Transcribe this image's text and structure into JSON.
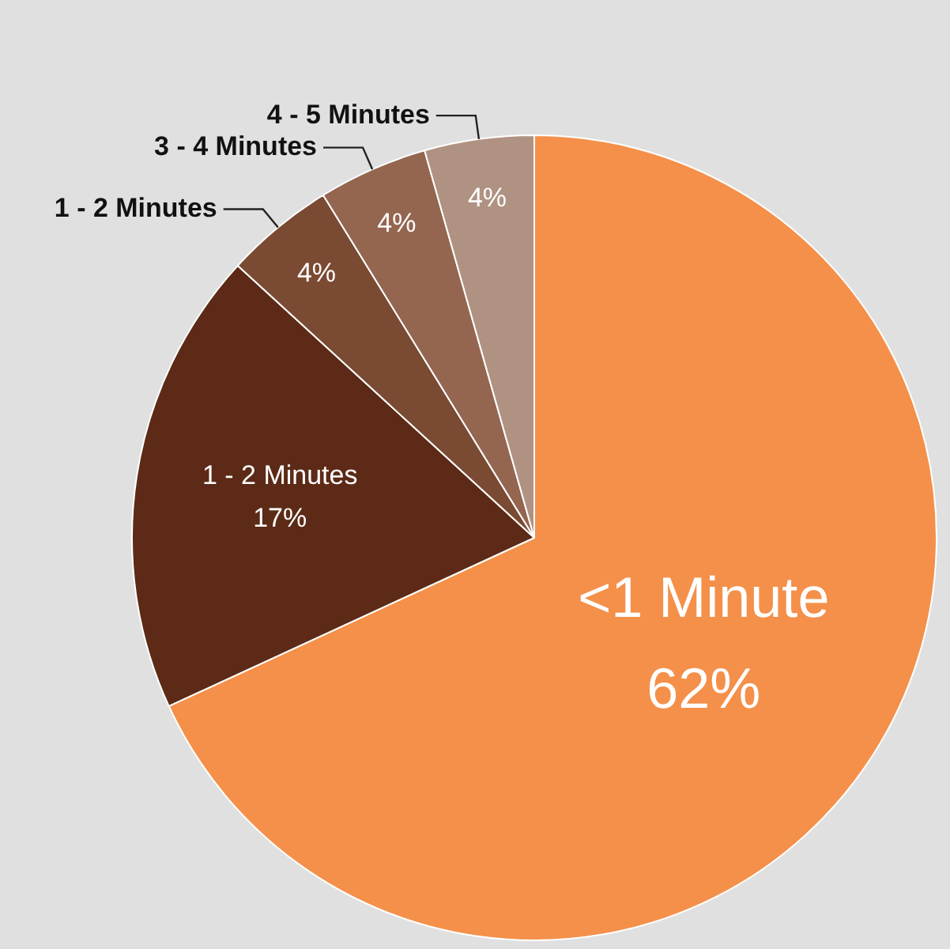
{
  "chart_data": {
    "type": "pie",
    "categories": [
      "<1 Minute",
      "1 - 2 Minutes",
      "1 - 2 Minutes",
      "3 - 4 Minutes",
      "4 - 5 Minutes"
    ],
    "values": [
      62,
      17,
      4,
      4,
      4
    ],
    "colors": [
      "#f4904a",
      "#5c2a16",
      "#7a4a33",
      "#946650",
      "#b09282"
    ],
    "value_labels": [
      "62%",
      "17%",
      "4%",
      "4%",
      "4%"
    ],
    "legend": false
  }
}
